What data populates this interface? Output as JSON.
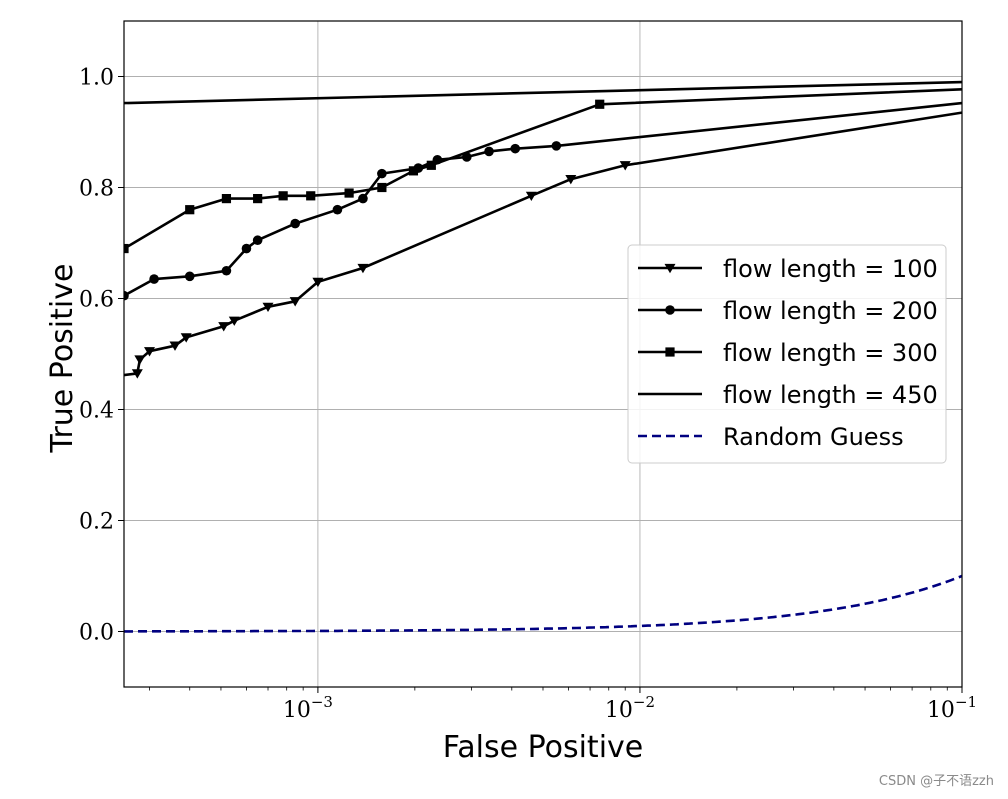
{
  "chart_data": {
    "type": "line",
    "xlabel": "False Positive",
    "ylabel": "True Positive",
    "xscale": "log",
    "xlim": [
      0.00025,
      0.1
    ],
    "ylim": [
      -0.1,
      1.1
    ],
    "grid": true,
    "legend_position": "right",
    "x_ticks": [
      {
        "value": 0.001,
        "base": "10",
        "exp": "−3"
      },
      {
        "value": 0.01,
        "base": "10",
        "exp": "−2"
      },
      {
        "value": 0.1,
        "base": "10",
        "exp": "−1"
      }
    ],
    "y_ticks": [
      {
        "value": 0.0,
        "label": "0.0"
      },
      {
        "value": 0.2,
        "label": "0.2"
      },
      {
        "value": 0.4,
        "label": "0.4"
      },
      {
        "value": 0.6,
        "label": "0.6"
      },
      {
        "value": 0.8,
        "label": "0.8"
      },
      {
        "value": 1.0,
        "label": "1.0"
      }
    ],
    "series": [
      {
        "name": "flow length = 100",
        "color": "#000000",
        "marker": "triangle-down",
        "dashed": false,
        "x": [
          0.00025,
          0.000275,
          0.00028,
          0.0003,
          0.00036,
          0.00039,
          0.00051,
          0.00055,
          0.0007,
          0.00085,
          0.001,
          0.00138,
          0.0046,
          0.0061,
          0.009,
          0.1
        ],
        "y": [
          0.462,
          0.465,
          0.49,
          0.505,
          0.515,
          0.53,
          0.55,
          0.56,
          0.585,
          0.595,
          0.63,
          0.655,
          0.785,
          0.815,
          0.84,
          0.935
        ],
        "marker_x": [
          0.000275,
          0.00028,
          0.0003,
          0.00036,
          0.00039,
          0.00051,
          0.00055,
          0.0007,
          0.00085,
          0.001,
          0.00138,
          0.0046,
          0.0061,
          0.009
        ]
      },
      {
        "name": "flow length = 200",
        "color": "#000000",
        "marker": "circle",
        "dashed": false,
        "x": [
          0.00025,
          0.00031,
          0.0004,
          0.00052,
          0.0006,
          0.00065,
          0.00085,
          0.00115,
          0.00138,
          0.00158,
          0.00205,
          0.00235,
          0.0029,
          0.0034,
          0.0041,
          0.0055,
          0.1
        ],
        "y": [
          0.605,
          0.635,
          0.64,
          0.65,
          0.69,
          0.705,
          0.735,
          0.76,
          0.78,
          0.825,
          0.835,
          0.85,
          0.855,
          0.865,
          0.87,
          0.875,
          0.952
        ],
        "marker_x": [
          0.00025,
          0.00031,
          0.0004,
          0.00052,
          0.0006,
          0.00065,
          0.00085,
          0.00115,
          0.00138,
          0.00158,
          0.00205,
          0.00235,
          0.0029,
          0.0034,
          0.0041,
          0.0055
        ]
      },
      {
        "name": "flow length = 300",
        "color": "#000000",
        "marker": "square",
        "dashed": false,
        "x": [
          0.00025,
          0.0004,
          0.00052,
          0.00065,
          0.00078,
          0.00095,
          0.00125,
          0.00158,
          0.00198,
          0.00225,
          0.0075,
          0.1
        ],
        "y": [
          0.69,
          0.76,
          0.78,
          0.78,
          0.785,
          0.785,
          0.79,
          0.8,
          0.83,
          0.84,
          0.95,
          0.977
        ],
        "marker_x": [
          0.00025,
          0.0004,
          0.00052,
          0.00065,
          0.00078,
          0.00095,
          0.00125,
          0.00158,
          0.00198,
          0.00225,
          0.0075
        ]
      },
      {
        "name": "flow length = 450",
        "color": "#000000",
        "marker": "none",
        "dashed": false,
        "x": [
          0.00025,
          0.1
        ],
        "y": [
          0.952,
          0.99
        ],
        "marker_x": []
      },
      {
        "name": "Random Guess",
        "color": "#000080",
        "marker": "none",
        "dashed": true,
        "function": "y = x",
        "x": [
          0.00025,
          0.001,
          0.003,
          0.01,
          0.02,
          0.04,
          0.06,
          0.08,
          0.1
        ],
        "y": [
          0.00025,
          0.001,
          0.003,
          0.01,
          0.02,
          0.04,
          0.06,
          0.08,
          0.1
        ],
        "marker_x": []
      }
    ]
  },
  "watermark": "CSDN @子不语zzh"
}
